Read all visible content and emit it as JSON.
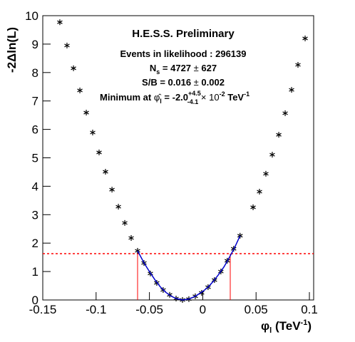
{
  "chart_data": {
    "type": "scatter",
    "title": "H.E.S.S. Preliminary",
    "annotations": [
      [
        "Events in likelihood : 296139"
      ],
      [
        "N",
        "s",
        " = 4727 ",
        "±",
        " 627"
      ],
      [
        "S/B = 0.016 ",
        "±",
        " 0.002"
      ],
      [
        "Minimum at ",
        "φ̂",
        "l",
        " = -2.0",
        "+4.5",
        "-4.1",
        " × 10",
        "-2",
        " TeV",
        "-1"
      ]
    ],
    "y_label": "-2Δln(L)",
    "x_label": [
      "φ",
      "l",
      " (TeV",
      "-1",
      ")"
    ],
    "xlim": [
      -0.15,
      0.104
    ],
    "ylim": [
      0,
      10
    ],
    "xticks": [
      -0.15,
      -0.1,
      -0.05,
      0,
      0.05,
      0.1
    ],
    "yticks": [
      0,
      1,
      2,
      3,
      4,
      5,
      6,
      7,
      8,
      9,
      10
    ],
    "series": [
      {
        "color": "#000000",
        "marker": "star",
        "x": [
          -0.134,
          -0.1273,
          -0.1212,
          -0.1152,
          -0.1092,
          -0.1032,
          -0.0972,
          -0.0912,
          -0.0851,
          -0.0791,
          -0.0731,
          -0.0671,
          -0.0611,
          -0.0551,
          -0.0491,
          -0.0431,
          -0.0371,
          -0.031,
          -0.025,
          -0.019,
          -0.013,
          -0.007,
          -0.001,
          0.005,
          0.011,
          0.017,
          0.023,
          0.029,
          0.035,
          0.0472,
          0.0532,
          0.0592,
          0.0652,
          0.0713,
          0.0773,
          0.0833,
          0.0893,
          0.096
        ],
        "values": [
          9.77,
          8.95,
          8.15,
          7.37,
          6.59,
          5.89,
          5.19,
          4.51,
          3.88,
          3.28,
          2.71,
          2.18,
          1.73,
          1.3,
          0.93,
          0.6,
          0.35,
          0.18,
          0.05,
          0,
          0.03,
          0.13,
          0.25,
          0.45,
          0.7,
          1.0,
          1.38,
          1.8,
          2.26,
          3.26,
          3.81,
          4.44,
          5.11,
          5.81,
          6.57,
          7.39,
          8.27,
          9.2
        ]
      },
      {
        "color": "#0000cc",
        "marker": "line",
        "x": [
          -0.0611,
          -0.055,
          -0.05,
          -0.045,
          -0.04,
          -0.035,
          -0.03,
          -0.025,
          -0.019,
          -0.013,
          -0.007,
          0,
          0.005,
          0.01,
          0.015,
          0.02,
          0.025,
          0.03,
          0.035
        ],
        "values": [
          1.73,
          1.3,
          1.0,
          0.72,
          0.47,
          0.28,
          0.14,
          0.05,
          0,
          0.03,
          0.13,
          0.3,
          0.45,
          0.66,
          0.9,
          1.17,
          1.5,
          1.85,
          2.26
        ]
      }
    ],
    "hlines": [
      {
        "value": 1.63,
        "color": "#ff0000",
        "style": "dashed"
      }
    ],
    "vlines": [
      {
        "value": -0.0611,
        "color": "#ff0000"
      },
      {
        "value": 0.0258,
        "color": "#ff0000"
      }
    ]
  }
}
